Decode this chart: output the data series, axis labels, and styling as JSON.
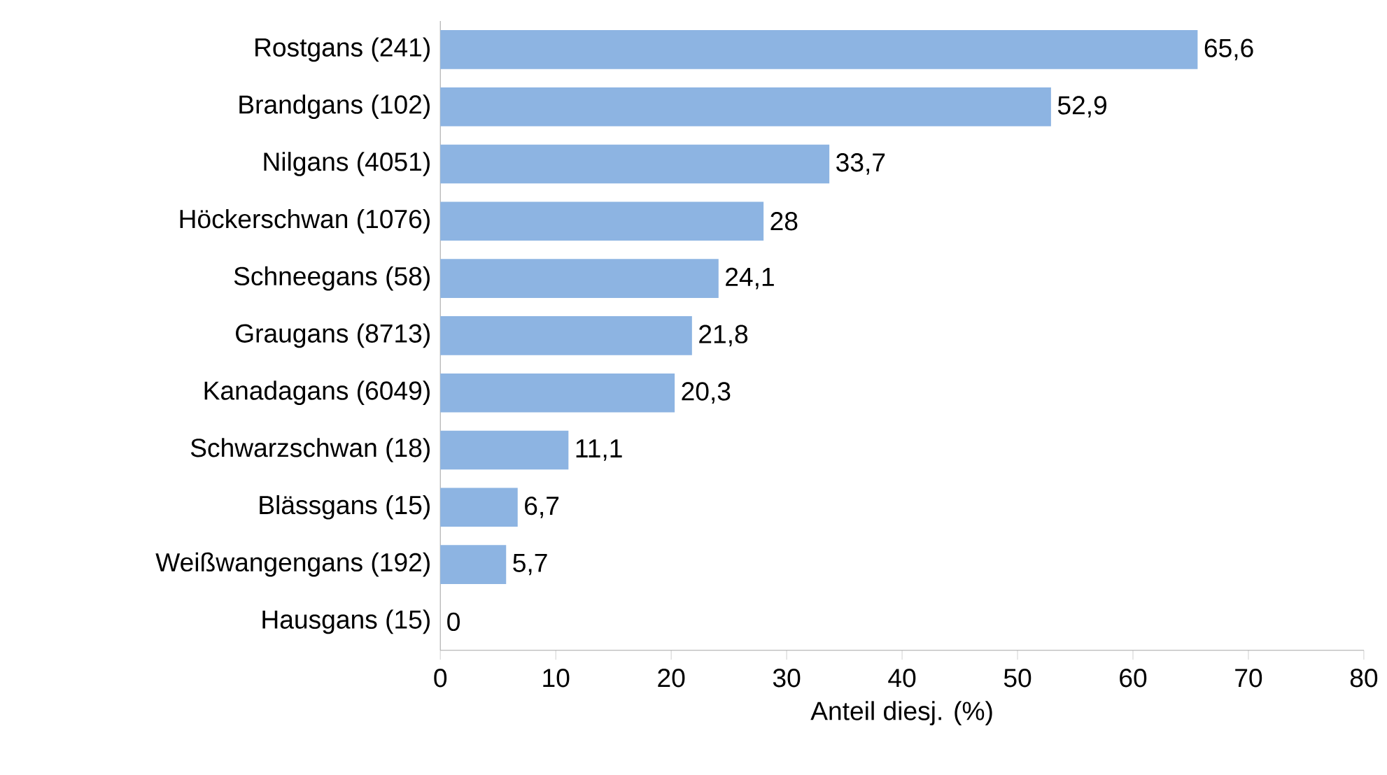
{
  "chart_data": {
    "type": "bar",
    "orientation": "horizontal",
    "xlabel": "Anteil diesj. (%)",
    "categories": [
      "Rostgans (241)",
      "Brandgans (102)",
      "Nilgans (4051)",
      "Höckerschwan (1076)",
      "Schneegans (58)",
      "Graugans (8713)",
      "Kanadagans (6049)",
      "Schwarzschwan (18)",
      "Blässgans (15)",
      "Weißwangengans (192)",
      "Hausgans (15)"
    ],
    "values": [
      65.6,
      52.9,
      33.7,
      28,
      24.1,
      21.8,
      20.3,
      11.1,
      6.7,
      5.7,
      0
    ],
    "value_labels": [
      "65,6",
      "52,9",
      "33,7",
      "28",
      "24,1",
      "21,8",
      "20,3",
      "11,1",
      "6,7",
      "5,7",
      "0"
    ],
    "color": "#8db4e2",
    "xlim": [
      0,
      80
    ],
    "xticks": [
      0,
      10,
      20,
      30,
      40,
      50,
      60,
      70,
      80
    ]
  }
}
